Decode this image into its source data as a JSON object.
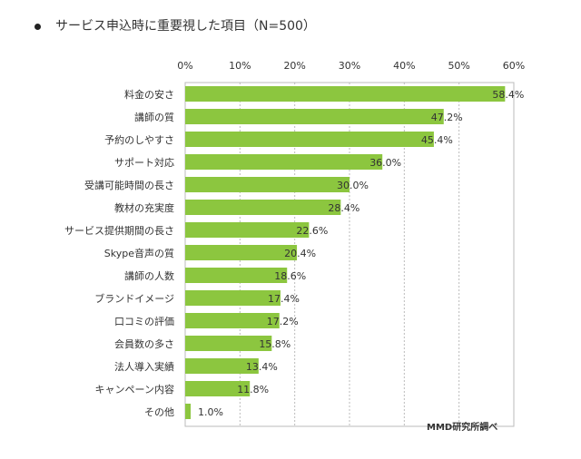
{
  "chart_data": {
    "type": "bar",
    "orientation": "horizontal",
    "title": "サービス申込時に重要視した項目（N=500）",
    "categories": [
      "料金の安さ",
      "講師の質",
      "予約のしやすさ",
      "サポート対応",
      "受講可能時間の長さ",
      "教材の充実度",
      "サービス提供期間の長さ",
      "Skype音声の質",
      "講師の人数",
      "ブランドイメージ",
      "口コミの評価",
      "会員数の多さ",
      "法人導入実績",
      "キャンペーン内容",
      "その他"
    ],
    "values": [
      58.4,
      47.2,
      45.4,
      36.0,
      30.0,
      28.4,
      22.6,
      20.4,
      18.6,
      17.4,
      17.2,
      15.8,
      13.4,
      11.8,
      1.0
    ],
    "data_labels": [
      "58.4%",
      "47.2%",
      "45.4%",
      "36.0%",
      "30.0%",
      "28.4%",
      "22.6%",
      "20.4%",
      "18.6%",
      "17.4%",
      "17.2%",
      "15.8%",
      "13.4%",
      "11.8%",
      "1.0%"
    ],
    "xticks": [
      "0%",
      "10%",
      "20%",
      "30%",
      "40%",
      "50%",
      "60%"
    ],
    "xlim": [
      0,
      60
    ],
    "grid": true,
    "bar_color": "#8cc63f",
    "source": "MMD研究所調べ"
  }
}
